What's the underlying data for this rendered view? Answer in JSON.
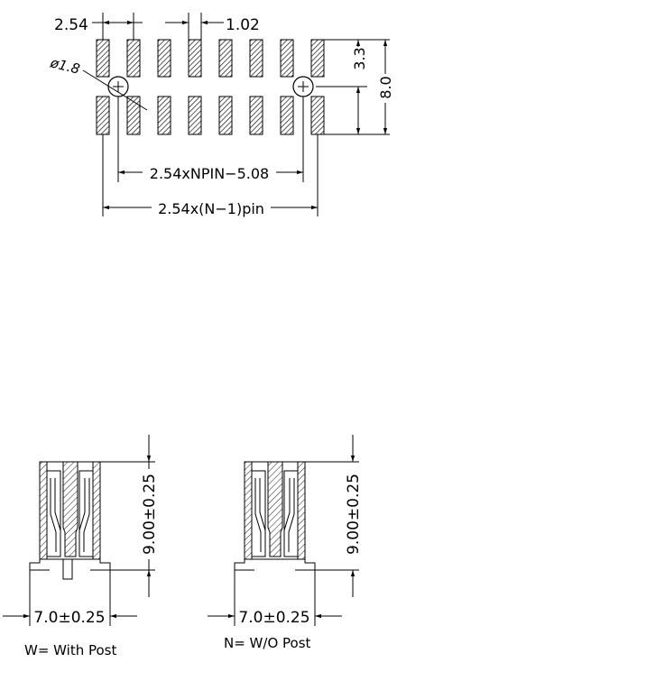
{
  "top_view": {
    "dim_pitch": "2.54",
    "dim_pad_width": "1.02",
    "dim_post_diameter": "ø1.8",
    "dim_row_spacing": "3.3",
    "dim_overall_height": "8.0",
    "dim_post_span": "2.54xNPIN−5.08",
    "dim_overall_span": "2.54x(N−1)pin"
  },
  "side_view_with_post": {
    "dim_height": "9.00±0.25",
    "dim_width": "7.0±0.25",
    "caption": "W=  With  Post"
  },
  "side_view_without_post": {
    "dim_height": "9.00±0.25",
    "dim_width": "7.0±0.25",
    "caption": "N=  W/O  Post"
  },
  "colors": {
    "line": "#000000",
    "background": "#ffffff"
  }
}
